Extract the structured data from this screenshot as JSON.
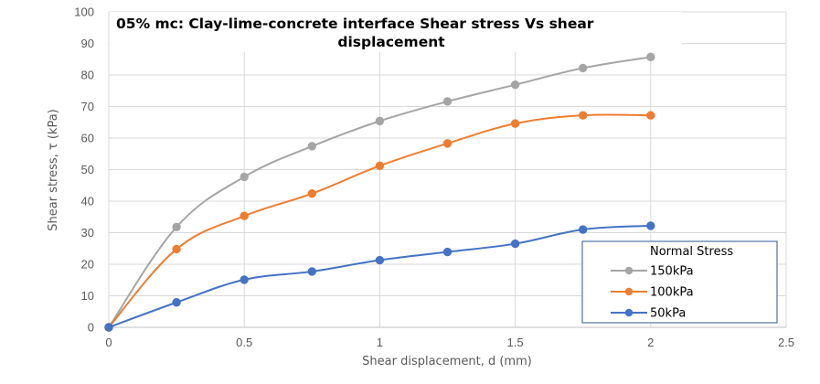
{
  "chart_data": {
    "type": "line",
    "title_lines": [
      "05% mc: Clay-lime-concrete interface Shear stress Vs shear",
      "displacement"
    ],
    "xlabel": "Shear displacement, d (mm)",
    "ylabel": "Shear stress, τ (kPa)",
    "xlim": [
      0,
      2.5
    ],
    "ylim": [
      0,
      100
    ],
    "xticks": [
      0,
      0.5,
      1,
      1.5,
      2,
      2.5
    ],
    "xtick_labels": [
      "0",
      "0.5",
      "1",
      "1.5",
      "2",
      "2.5"
    ],
    "yticks": [
      0,
      10,
      20,
      30,
      40,
      50,
      60,
      70,
      80,
      90,
      100
    ],
    "ytick_labels": [
      "0",
      "10",
      "20",
      "30",
      "40",
      "50",
      "60",
      "70",
      "80",
      "90",
      "100"
    ],
    "grid": true,
    "legend_title": "Normal Stress",
    "legend_position": "bottom-right",
    "x": [
      0,
      0.25,
      0.5,
      0.75,
      1,
      1.25,
      1.5,
      1.75,
      2
    ],
    "series": [
      {
        "name": "150kPa",
        "color": "#a5a5a5",
        "values": [
          0,
          31.8,
          47.7,
          57.4,
          65.4,
          71.6,
          76.9,
          82.2,
          85.7
        ]
      },
      {
        "name": "100kPa",
        "color": "#ed7d31",
        "values": [
          0,
          24.8,
          35.3,
          42.4,
          51.2,
          58.3,
          64.6,
          67.2,
          67.2
        ]
      },
      {
        "name": "50kPa",
        "color": "#4472c4",
        "values": [
          0,
          7.9,
          15.1,
          17.7,
          21.3,
          23.9,
          26.5,
          31.0,
          32.2
        ]
      }
    ]
  }
}
